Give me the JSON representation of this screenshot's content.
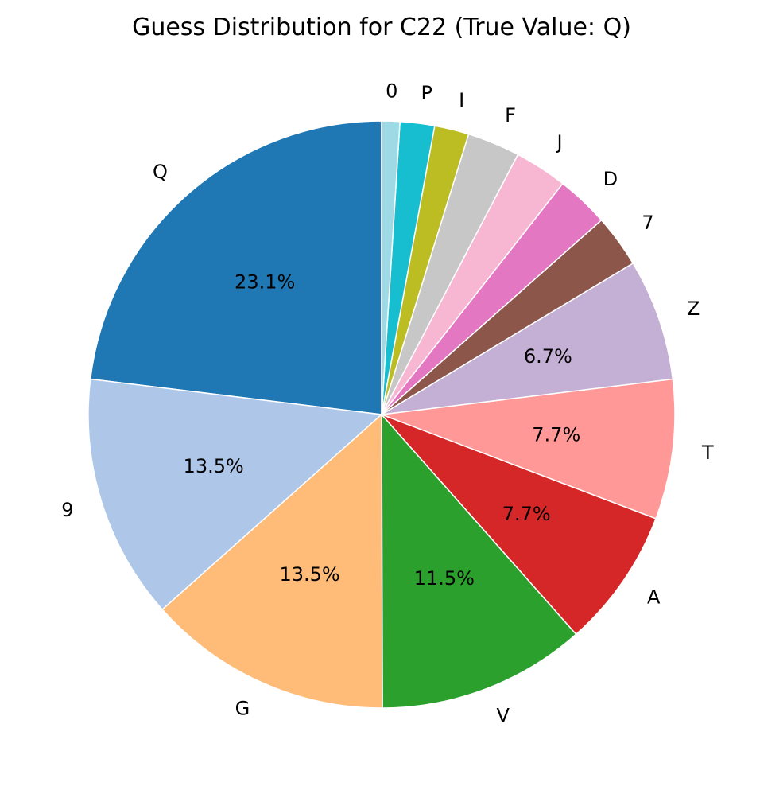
{
  "chart_data": {
    "type": "pie",
    "title": "Guess Distribution for C22 (True Value: Q)",
    "start_angle_deg": 90,
    "direction": "counterclockwise",
    "slices": [
      {
        "label": "Q",
        "value": 23.1,
        "pct_label": "23.1%",
        "color": "#1f77b4"
      },
      {
        "label": "9",
        "value": 13.5,
        "pct_label": "13.5%",
        "color": "#aec7e8"
      },
      {
        "label": "G",
        "value": 13.5,
        "pct_label": "13.5%",
        "color": "#ffbb78"
      },
      {
        "label": "V",
        "value": 11.5,
        "pct_label": "11.5%",
        "color": "#2ca02c"
      },
      {
        "label": "A",
        "value": 7.7,
        "pct_label": "7.7%",
        "color": "#d62728"
      },
      {
        "label": "T",
        "value": 7.7,
        "pct_label": "7.7%",
        "color": "#ff9896"
      },
      {
        "label": "Z",
        "value": 6.7,
        "pct_label": "6.7%",
        "color": "#c5b0d5"
      },
      {
        "label": "7",
        "value": 2.9,
        "pct_label": "",
        "color": "#8c564b"
      },
      {
        "label": "D",
        "value": 2.9,
        "pct_label": "",
        "color": "#e377c2"
      },
      {
        "label": "J",
        "value": 2.9,
        "pct_label": "",
        "color": "#f7b6d2"
      },
      {
        "label": "F",
        "value": 2.9,
        "pct_label": "",
        "color": "#c7c7c7"
      },
      {
        "label": "I",
        "value": 1.9,
        "pct_label": "",
        "color": "#bcbd22"
      },
      {
        "label": "P",
        "value": 1.9,
        "pct_label": "",
        "color": "#17becf"
      },
      {
        "label": "0",
        "value": 1.0,
        "pct_label": "",
        "color": "#9edae5"
      }
    ]
  }
}
